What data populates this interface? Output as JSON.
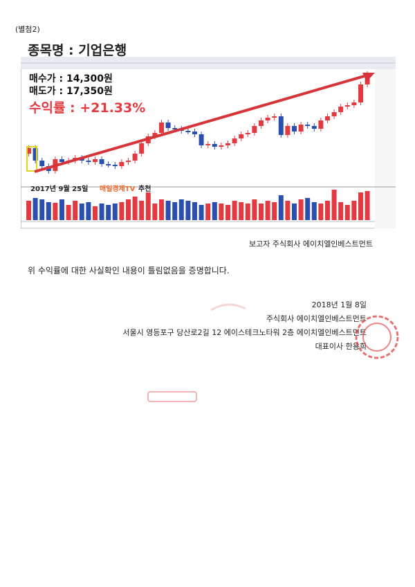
{
  "header": {
    "attachment": "(별첨2)"
  },
  "chart_image": {
    "title": "종목명 : 기업은행",
    "buy_price": "매수가 : 14,300원",
    "sell_price": "매도가 : 17,350원",
    "return_rate": "수익률 : +21.33%",
    "recommend_date": "2017년 9월 25일",
    "recommend_channel": "매일경제TV",
    "recommend_word": "추천"
  },
  "reporter": "보고자 주식회사 에이치엘인베스트먼트",
  "statement": "위 수익률에 대한 사실확인 내용이 틀림없음을 증명합니다.",
  "signature": {
    "date": "2018년 1월 8일",
    "company": "주식회사 에이치엘인베스트먼트",
    "address": "서울시 영등포구 당산로2길 12 에이스테크노타워 2층 에이치엘인베스트먼트",
    "ceo": "대표이사 한용희"
  }
}
